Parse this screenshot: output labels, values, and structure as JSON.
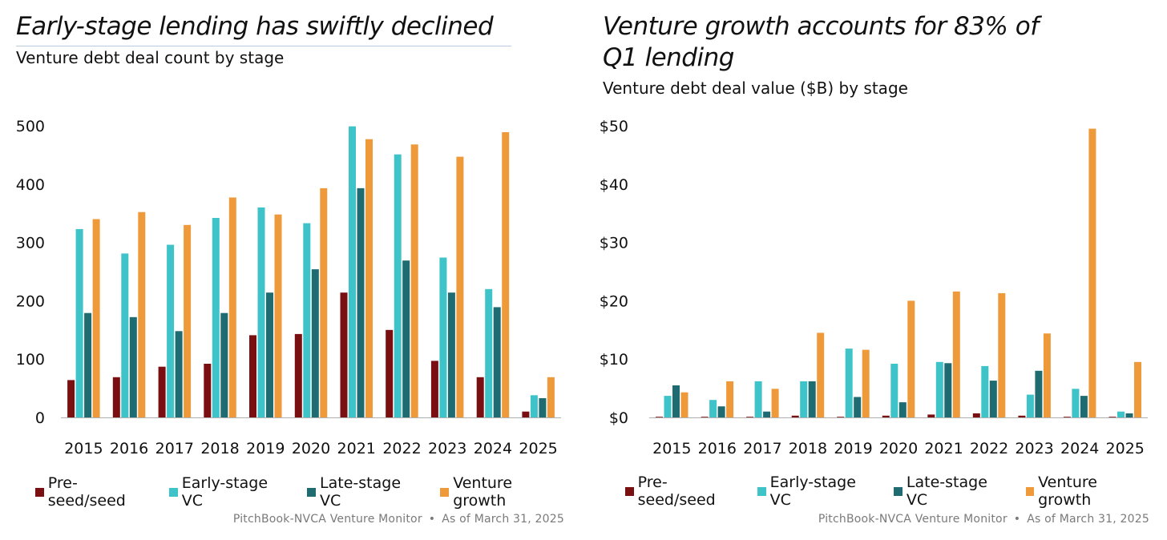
{
  "colors": {
    "preseed": "#7a0f11",
    "early": "#3ec3c8",
    "late": "#1e6b72",
    "growth": "#ef9a3a",
    "axis": "#b0b0b0"
  },
  "chart_data": [
    {
      "type": "bar",
      "title": "Early-stage lending has swiftly declined",
      "subtitle": "Venture debt deal count by stage",
      "categories": [
        "2015",
        "2016",
        "2017",
        "2018",
        "2019",
        "2020",
        "2021",
        "2022",
        "2023",
        "2024",
        "2025"
      ],
      "ylim": [
        0,
        500
      ],
      "yticks": [
        "0",
        "100",
        "200",
        "300",
        "400",
        "500"
      ],
      "ytick_values": [
        0,
        100,
        200,
        300,
        400,
        500
      ],
      "grid": false,
      "legend_position": "bottom",
      "series": [
        {
          "name": "Pre-seed/seed",
          "color_key": "preseed",
          "values": [
            64,
            69,
            87,
            92,
            141,
            143,
            214,
            150,
            97,
            69,
            10
          ]
        },
        {
          "name": "Early-stage VC",
          "color_key": "early",
          "values": [
            323,
            281,
            296,
            342,
            360,
            333,
            499,
            451,
            274,
            220,
            38
          ]
        },
        {
          "name": "Late-stage VC",
          "color_key": "late",
          "values": [
            179,
            172,
            148,
            179,
            214,
            254,
            393,
            269,
            214,
            189,
            33
          ]
        },
        {
          "name": "Venture growth",
          "color_key": "growth",
          "values": [
            340,
            352,
            330,
            377,
            348,
            393,
            477,
            468,
            447,
            489,
            69
          ]
        }
      ],
      "source": "PitchBook-NVCA Venture Monitor",
      "separator": "•",
      "as_of": "As of March 31, 2025"
    },
    {
      "type": "bar",
      "title": "Venture growth accounts for 83% of Q1 lending",
      "title_lines": [
        "Venture growth accounts for 83% of",
        "Q1 lending"
      ],
      "subtitle": "Venture debt deal value ($B) by stage",
      "categories": [
        "2015",
        "2016",
        "2017",
        "2018",
        "2019",
        "2020",
        "2021",
        "2022",
        "2023",
        "2024",
        "2025"
      ],
      "ylim": [
        0,
        50
      ],
      "yticks": [
        "$0",
        "$10",
        "$20",
        "$30",
        "$40",
        "$50"
      ],
      "ytick_values": [
        0,
        10,
        20,
        30,
        40,
        50
      ],
      "grid": false,
      "legend_position": "bottom",
      "series": [
        {
          "name": "Pre-seed/seed",
          "color_key": "preseed",
          "values": [
            0.1,
            0.1,
            0.1,
            0.3,
            0.1,
            0.3,
            0.5,
            0.7,
            0.3,
            0.1,
            0.1
          ]
        },
        {
          "name": "Early-stage VC",
          "color_key": "early",
          "values": [
            3.7,
            3.0,
            6.2,
            6.2,
            11.8,
            9.2,
            9.5,
            8.8,
            3.9,
            4.9,
            1.0
          ]
        },
        {
          "name": "Late-stage VC",
          "color_key": "late",
          "values": [
            5.5,
            1.9,
            1.0,
            6.2,
            3.5,
            2.6,
            9.3,
            6.3,
            8.0,
            3.7,
            0.7
          ]
        },
        {
          "name": "Venture growth",
          "color_key": "growth",
          "values": [
            4.3,
            6.2,
            4.9,
            14.5,
            11.6,
            20.0,
            21.6,
            21.3,
            14.4,
            49.5,
            9.5
          ]
        }
      ],
      "source": "PitchBook-NVCA Venture Monitor",
      "separator": "•",
      "as_of": "As of March 31, 2025"
    }
  ]
}
